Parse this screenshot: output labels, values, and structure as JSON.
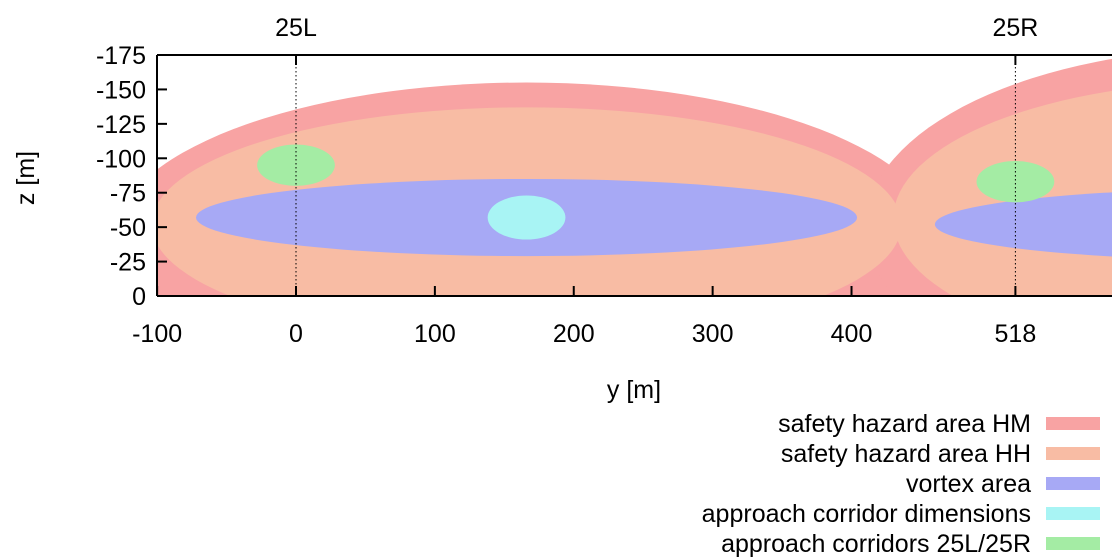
{
  "chart_data": {
    "type": "area",
    "title": "",
    "xlabel": "y [m]",
    "ylabel": "z [m]",
    "xlim": [
      -100,
      570
    ],
    "ylim": [
      0,
      -175
    ],
    "x_ticks": [
      "-100",
      "0",
      "100",
      "200",
      "300",
      "400",
      "518"
    ],
    "x_tick_values": [
      -100,
      0,
      100,
      200,
      300,
      400,
      518
    ],
    "y_ticks": [
      "-175",
      "-150",
      "-125",
      "-100",
      "-75",
      "-50",
      "-25",
      "0"
    ],
    "y_tick_values": [
      -175,
      -150,
      -125,
      -100,
      -75,
      -50,
      -25,
      0
    ],
    "runways": [
      {
        "label": "25L",
        "y": 0
      },
      {
        "label": "25R",
        "y": 518
      }
    ],
    "legend_position": "bottom-right",
    "series": [
      {
        "name": "safety hazard area HM",
        "color": "#f8a3a3",
        "ellipses": [
          {
            "cy": 166,
            "cz": -40,
            "ry": 298,
            "rz": 115
          },
          {
            "cy": 680,
            "cz": -50,
            "ry": 270,
            "rz": 130
          }
        ]
      },
      {
        "name": "safety hazard area HH",
        "color": "#f8bca4",
        "ellipses": [
          {
            "cy": 166,
            "cz": -52,
            "ry": 270,
            "rz": 85
          },
          {
            "cy": 680,
            "cz": -56,
            "ry": 250,
            "rz": 100
          }
        ]
      },
      {
        "name": "vortex area",
        "color": "#a7a9f5",
        "ellipses": [
          {
            "cy": 166,
            "cz": -57,
            "ry": 238,
            "rz": 28
          },
          {
            "cy": 690,
            "cz": -52,
            "ry": 230,
            "rz": 26
          }
        ]
      },
      {
        "name": "approach corridor dimensions",
        "color": "#a8f4f4",
        "ellipses": [
          {
            "cy": 166,
            "cz": -57,
            "ry": 28,
            "rz": 16
          }
        ]
      },
      {
        "name": "approach corridors 25L/25R",
        "color": "#a4eca4",
        "ellipses": [
          {
            "cy": 0,
            "cz": -95,
            "ry": 28,
            "rz": 15
          },
          {
            "cy": 518,
            "cz": -83,
            "ry": 28,
            "rz": 15
          }
        ]
      }
    ]
  }
}
